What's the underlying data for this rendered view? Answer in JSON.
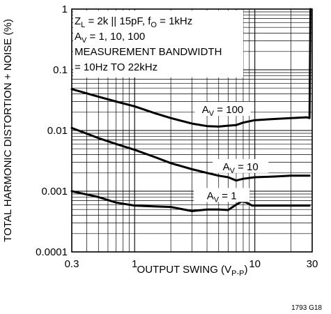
{
  "chart_data": {
    "type": "line",
    "xlabel": {
      "main": "OUTPUT SWING (V",
      "sub": "P-P",
      "close": ")"
    },
    "ylabel": "TOTAL HARMONIC DISTORTION + NOISE (%)",
    "x_scale": "log",
    "y_scale": "log",
    "xlim": [
      0.3,
      30
    ],
    "ylim": [
      0.0001,
      1
    ],
    "grid": true,
    "x_ticks": [
      {
        "value": 0.3,
        "label": "0.3"
      },
      {
        "value": 1,
        "label": "1"
      },
      {
        "value": 10,
        "label": "10"
      },
      {
        "value": 30,
        "label": "30"
      }
    ],
    "y_ticks": [
      {
        "value": 1,
        "label": "1"
      },
      {
        "value": 0.1,
        "label": "0.1"
      },
      {
        "value": 0.01,
        "label": "0.01"
      },
      {
        "value": 0.001,
        "label": "0.001"
      },
      {
        "value": 0.0001,
        "label": "0.0001"
      }
    ],
    "conditions": [
      {
        "parts": [
          [
            "Z",
            "n"
          ],
          [
            "L",
            "s"
          ],
          [
            " = 2k || 15pF, f",
            "n"
          ],
          [
            "O",
            "s"
          ],
          [
            " = 1kHz",
            "n"
          ]
        ]
      },
      {
        "parts": [
          [
            "A",
            "n"
          ],
          [
            "V",
            "s"
          ],
          [
            " = 1, 10, 100",
            "n"
          ]
        ]
      },
      {
        "parts": [
          [
            "MEASUREMENT BANDWIDTH",
            "n"
          ]
        ]
      },
      {
        "parts": [
          [
            "= 10Hz TO 22kHz",
            "n"
          ]
        ]
      }
    ],
    "series": [
      {
        "label_main": "A",
        "label_sub": "V",
        "label_rest": " = 100",
        "label_at": [
          5.4,
          0.021
        ],
        "points": [
          [
            0.3,
            0.048
          ],
          [
            0.5,
            0.036
          ],
          [
            0.7,
            0.03
          ],
          [
            1,
            0.025
          ],
          [
            1.5,
            0.019
          ],
          [
            2,
            0.016
          ],
          [
            3,
            0.013
          ],
          [
            4,
            0.0118
          ],
          [
            5,
            0.0116
          ],
          [
            6,
            0.012
          ],
          [
            7,
            0.0123
          ],
          [
            8,
            0.0135
          ],
          [
            10,
            0.0148
          ],
          [
            15,
            0.0155
          ],
          [
            20,
            0.016
          ],
          [
            27,
            0.0165
          ],
          [
            28.5,
            0.016
          ],
          [
            29,
            1
          ]
        ]
      },
      {
        "label_main": "A",
        "label_sub": "V",
        "label_rest": " = 10",
        "label_at": [
          7.6,
          0.0024
        ],
        "points": [
          [
            0.3,
            0.011
          ],
          [
            0.5,
            0.0075
          ],
          [
            0.7,
            0.006
          ],
          [
            1,
            0.0048
          ],
          [
            1.5,
            0.0036
          ],
          [
            2,
            0.0029
          ],
          [
            3,
            0.0023
          ],
          [
            4,
            0.002
          ],
          [
            5,
            0.0018
          ],
          [
            6,
            0.0017
          ],
          [
            7,
            0.0015
          ],
          [
            8,
            0.0016
          ],
          [
            10,
            0.0017
          ],
          [
            15,
            0.00175
          ],
          [
            20,
            0.0018
          ],
          [
            27,
            0.0018
          ],
          [
            28.5,
            0.0018
          ]
        ]
      },
      {
        "label_main": "A",
        "label_sub": "V",
        "label_rest": " = 1",
        "label_at": [
          5.3,
          0.0008
        ],
        "points": [
          [
            0.3,
            0.001
          ],
          [
            0.5,
            0.0008
          ],
          [
            0.7,
            0.00065
          ],
          [
            1,
            0.00058
          ],
          [
            1.5,
            0.00056
          ],
          [
            2,
            0.00055
          ],
          [
            3,
            0.00047
          ],
          [
            4,
            0.0005
          ],
          [
            5,
            0.0005
          ],
          [
            6,
            0.00049
          ],
          [
            7,
            0.0006
          ],
          [
            7.8,
            0.00068
          ],
          [
            8.5,
            0.00065
          ],
          [
            9.5,
            0.00058
          ],
          [
            12,
            0.00058
          ],
          [
            20,
            0.00058
          ],
          [
            27,
            0.00058
          ],
          [
            28.5,
            0.00058
          ]
        ]
      }
    ]
  },
  "figure_code": "1793 G18"
}
